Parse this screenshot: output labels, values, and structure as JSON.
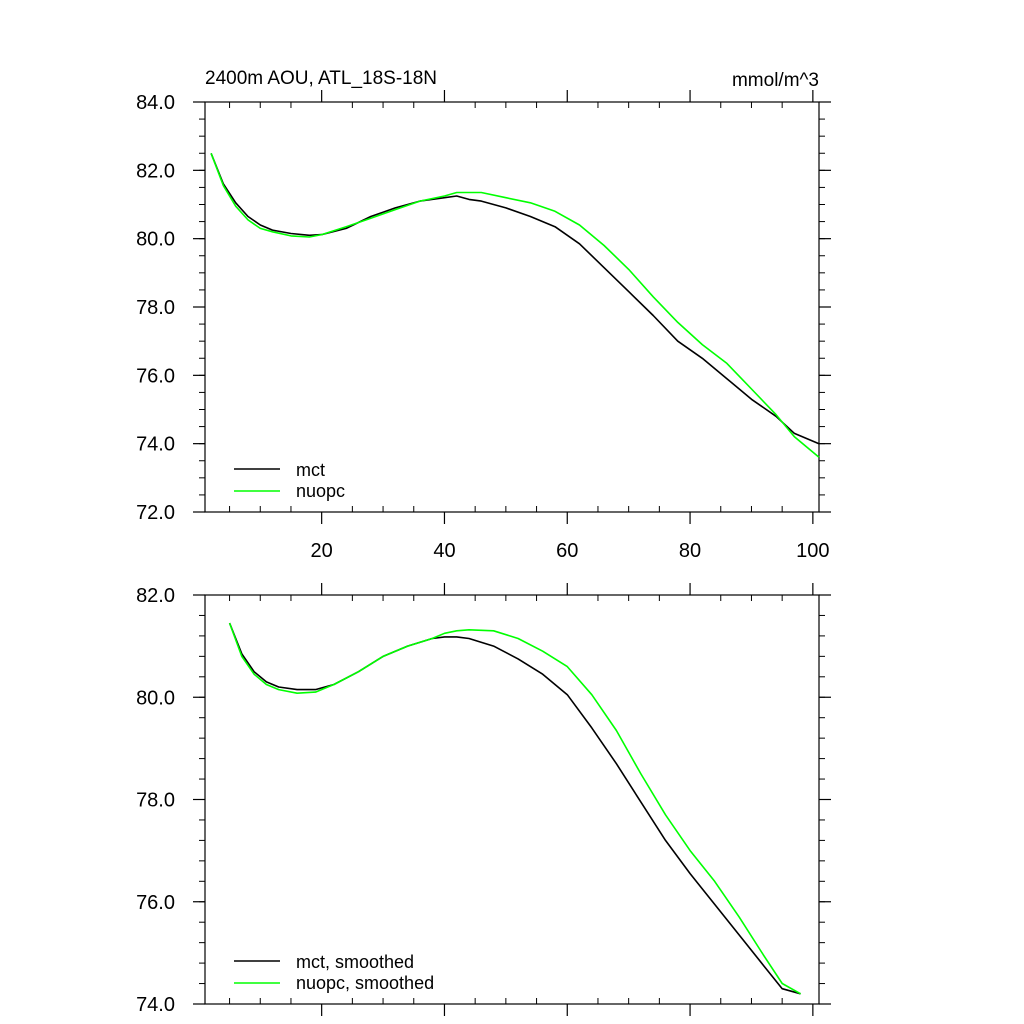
{
  "chart_data": [
    {
      "type": "line",
      "title": "2400m AOU, ATL_18S-18N",
      "units": "mmol/m^3",
      "xlim": [
        1,
        101
      ],
      "ylim": [
        72.0,
        84.0
      ],
      "xticks": [
        20,
        40,
        60,
        80,
        100
      ],
      "xtick_labels": [
        "20",
        "40",
        "60",
        "80",
        "100"
      ],
      "yticks": [
        72,
        74,
        76,
        78,
        80,
        82,
        84
      ],
      "ytick_labels": [
        "72.0",
        "74.0",
        "76.0",
        "78.0",
        "80.0",
        "82.0",
        "84.0"
      ],
      "legend": "bottom-left",
      "series": [
        {
          "name": "mct",
          "color": "#000000",
          "x": [
            2,
            4,
            6,
            8,
            10,
            12,
            15,
            18,
            20,
            24,
            28,
            32,
            36,
            40,
            42,
            44,
            46,
            50,
            54,
            58,
            62,
            66,
            70,
            74,
            78,
            82,
            86,
            90,
            94,
            97,
            101
          ],
          "y": [
            82.5,
            81.6,
            81.05,
            80.65,
            80.4,
            80.25,
            80.15,
            80.1,
            80.12,
            80.3,
            80.65,
            80.9,
            81.1,
            81.2,
            81.25,
            81.15,
            81.1,
            80.9,
            80.65,
            80.35,
            79.85,
            79.15,
            78.45,
            77.75,
            77.0,
            76.5,
            75.9,
            75.3,
            74.8,
            74.3,
            74.0
          ]
        },
        {
          "name": "nuopc",
          "color": "#00ff00",
          "x": [
            2,
            4,
            6,
            8,
            10,
            12,
            15,
            18,
            20,
            24,
            28,
            32,
            36,
            40,
            42,
            44,
            46,
            50,
            54,
            58,
            62,
            66,
            70,
            74,
            78,
            82,
            86,
            90,
            94,
            97,
            101
          ],
          "y": [
            82.5,
            81.55,
            80.95,
            80.55,
            80.3,
            80.2,
            80.08,
            80.05,
            80.12,
            80.35,
            80.6,
            80.85,
            81.1,
            81.25,
            81.35,
            81.35,
            81.35,
            81.2,
            81.05,
            80.8,
            80.4,
            79.8,
            79.1,
            78.3,
            77.55,
            76.9,
            76.35,
            75.6,
            74.85,
            74.2,
            73.6
          ]
        }
      ]
    },
    {
      "type": "line",
      "xlim": [
        1,
        101
      ],
      "ylim": [
        74.0,
        82.0
      ],
      "xticks": [
        20,
        40,
        60,
        80,
        100
      ],
      "yticks": [
        74,
        76,
        78,
        80,
        82
      ],
      "ytick_labels": [
        "74.0",
        "76.0",
        "78.0",
        "80.0",
        "82.0"
      ],
      "legend": "bottom-left",
      "series": [
        {
          "name": "mct, smoothed",
          "color": "#000000",
          "x": [
            5,
            7,
            9,
            11,
            13,
            16,
            19,
            22,
            26,
            30,
            34,
            38,
            40,
            42,
            44,
            48,
            52,
            56,
            60,
            64,
            68,
            72,
            76,
            80,
            84,
            88,
            92,
            95,
            98
          ],
          "y": [
            81.45,
            80.85,
            80.5,
            80.3,
            80.2,
            80.15,
            80.15,
            80.25,
            80.5,
            80.8,
            81.0,
            81.15,
            81.18,
            81.18,
            81.15,
            81.0,
            80.75,
            80.45,
            80.05,
            79.4,
            78.7,
            77.95,
            77.2,
            76.55,
            75.95,
            75.35,
            74.75,
            74.3,
            74.2
          ]
        },
        {
          "name": "nuopc, smoothed",
          "color": "#00ff00",
          "x": [
            5,
            7,
            9,
            11,
            13,
            16,
            19,
            22,
            26,
            30,
            34,
            38,
            40,
            42,
            44,
            48,
            52,
            56,
            60,
            64,
            68,
            72,
            76,
            80,
            84,
            88,
            92,
            95,
            98
          ],
          "y": [
            81.45,
            80.8,
            80.45,
            80.25,
            80.15,
            80.08,
            80.1,
            80.25,
            80.5,
            80.8,
            81.0,
            81.15,
            81.25,
            81.3,
            81.32,
            81.3,
            81.15,
            80.9,
            80.6,
            80.05,
            79.35,
            78.5,
            77.7,
            77.0,
            76.4,
            75.7,
            74.95,
            74.4,
            74.2
          ]
        }
      ]
    }
  ]
}
